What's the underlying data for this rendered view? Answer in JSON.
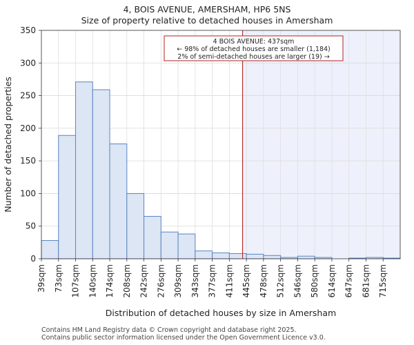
{
  "title": "4, BOIS AVENUE, AMERSHAM, HP6 5NS",
  "subtitle": "Size of property relative to detached houses in Amersham",
  "footer": {
    "line1": "Contains HM Land Registry data © Crown copyright and database right 2025.",
    "line2": "Contains public sector information licensed under the Open Government Licence v3.0."
  },
  "colors": {
    "bar_fill": "#dce6f4",
    "bar_edge": "#5b84c2",
    "marker": "#b22222",
    "highlight": "#eef1fb"
  },
  "chart_data": {
    "type": "bar",
    "title": "4, BOIS AVENUE, AMERSHAM, HP6 5NS",
    "subtitle": "Size of property relative to detached houses in Amersham",
    "xlabel": "Distribution of detached houses by size in Amersham",
    "ylabel": "Number of detached properties",
    "ylim": [
      0,
      350
    ],
    "yticks": [
      0,
      50,
      100,
      150,
      200,
      250,
      300,
      350
    ],
    "categories": [
      "39sqm",
      "73sqm",
      "107sqm",
      "140sqm",
      "174sqm",
      "208sqm",
      "242sqm",
      "276sqm",
      "309sqm",
      "343sqm",
      "377sqm",
      "411sqm",
      "445sqm",
      "478sqm",
      "512sqm",
      "546sqm",
      "580sqm",
      "614sqm",
      "647sqm",
      "681sqm",
      "715sqm"
    ],
    "values": [
      28,
      189,
      271,
      259,
      176,
      100,
      65,
      41,
      38,
      12,
      9,
      8,
      7,
      5,
      2,
      4,
      2,
      0,
      1,
      2,
      1
    ],
    "grid": true,
    "property_marker": {
      "value_sqm": 437,
      "annotation": [
        "4 BOIS AVENUE: 437sqm",
        "← 98% of detached houses are smaller (1,184)",
        "2% of semi-detached houses are larger (19) →"
      ]
    }
  }
}
